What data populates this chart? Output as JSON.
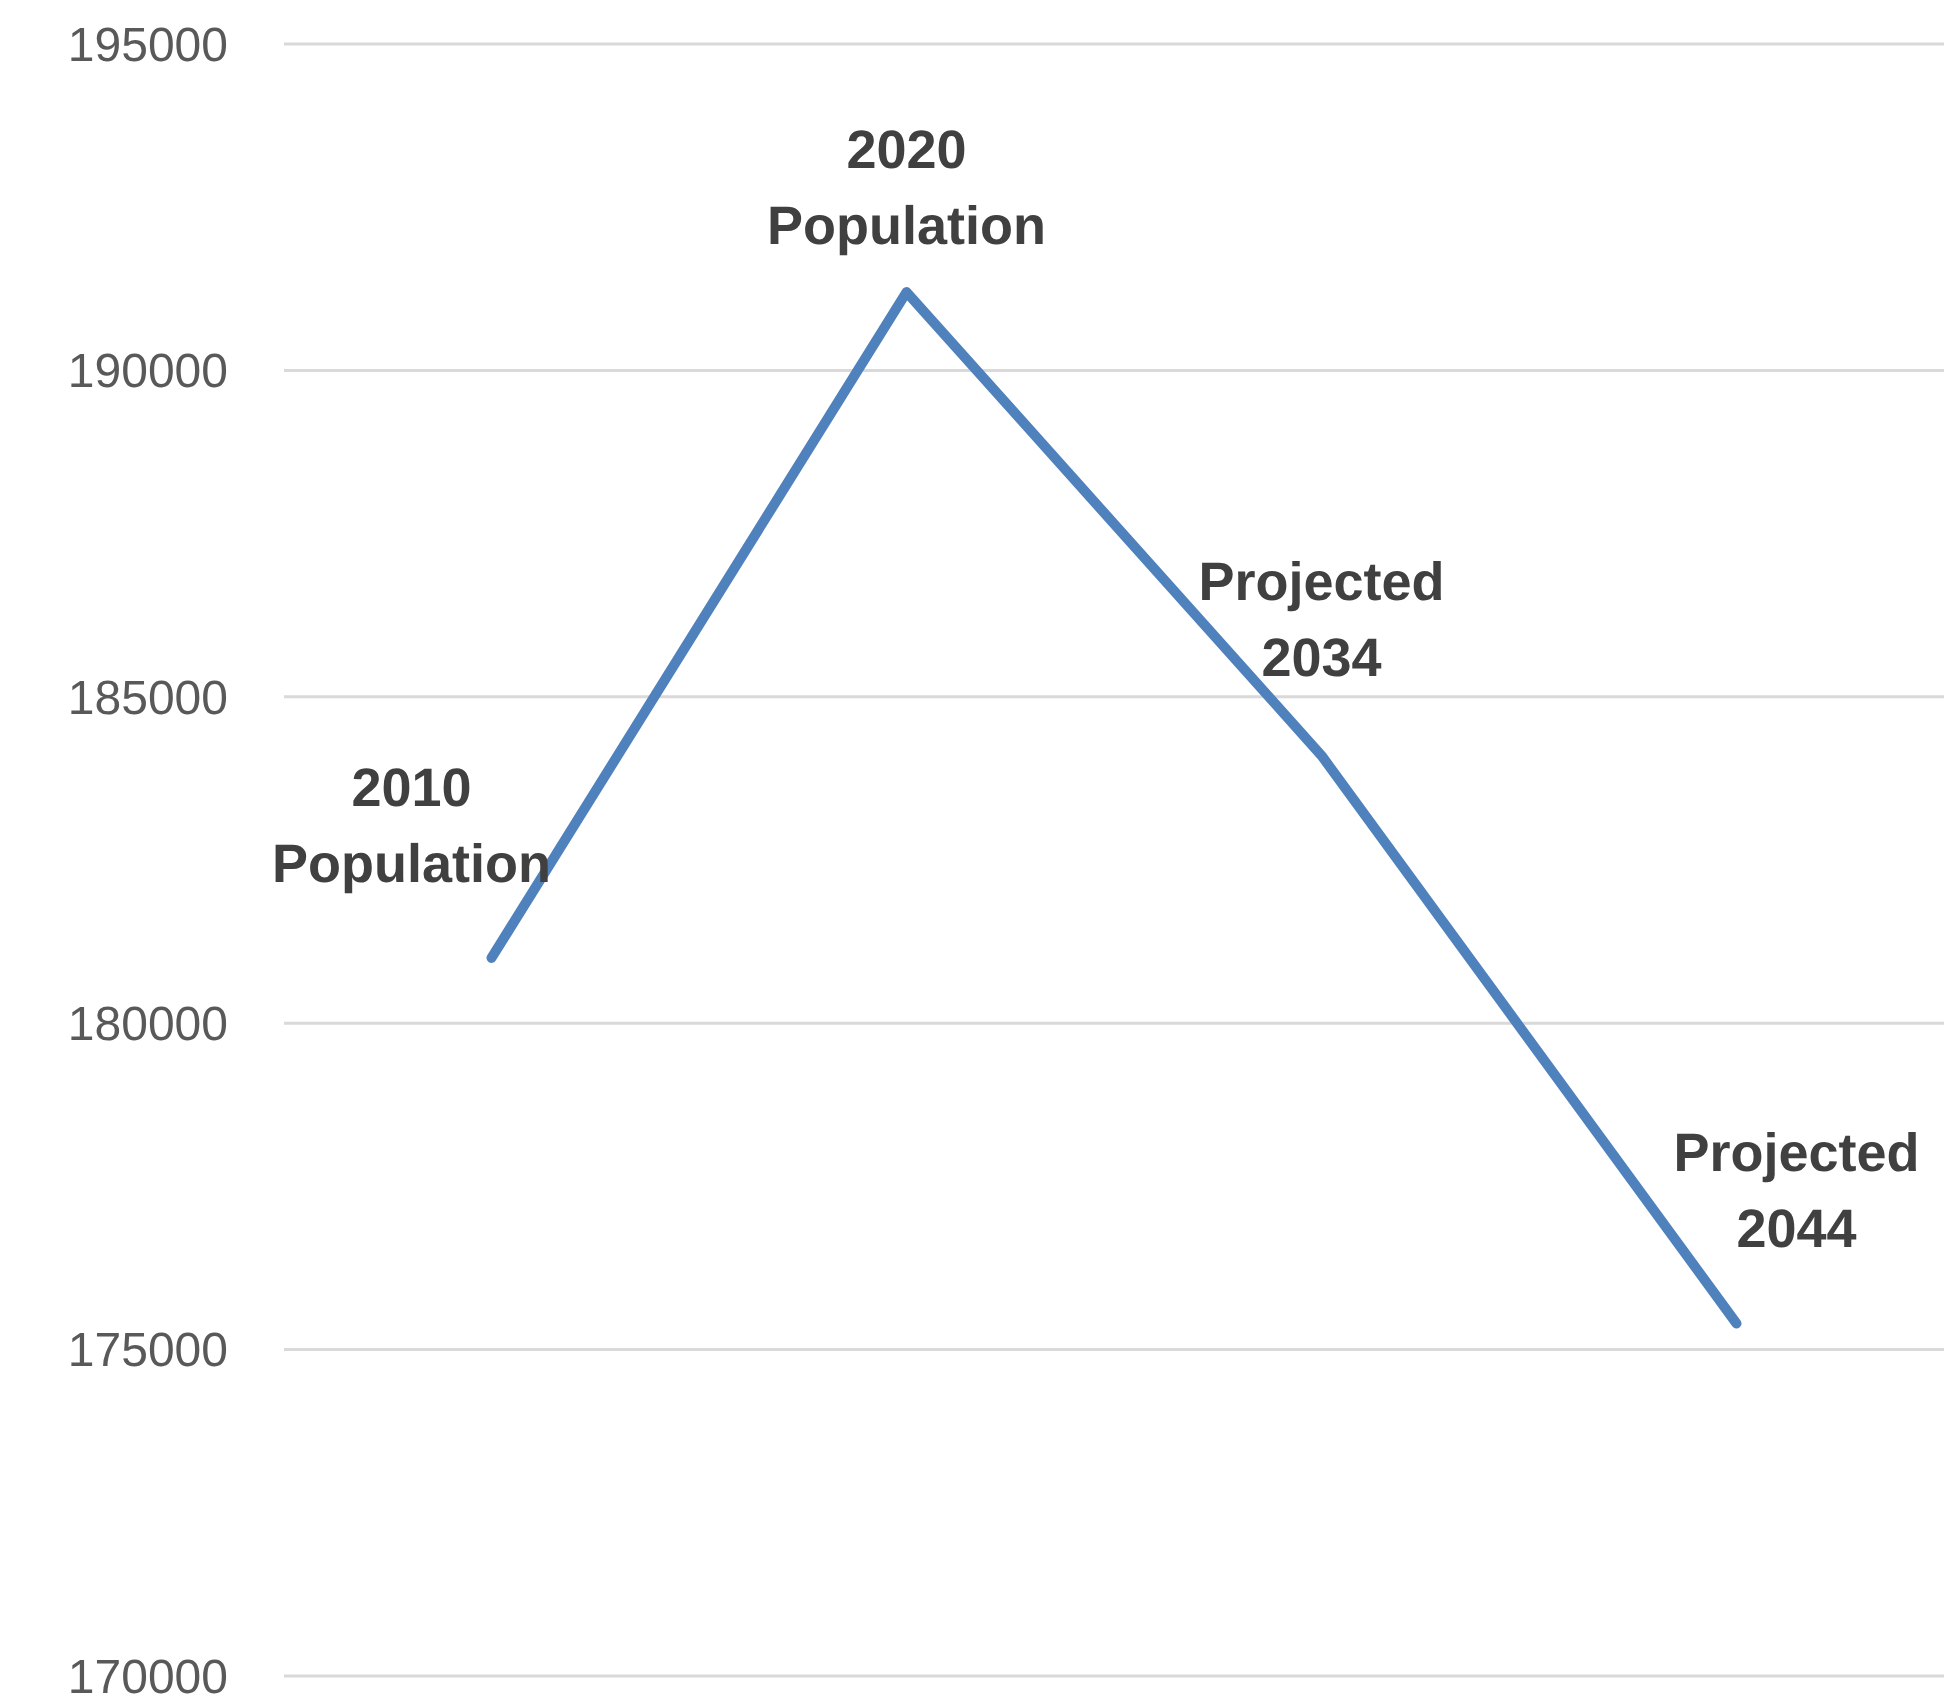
{
  "chart_data": {
    "type": "line",
    "categories": [
      "2010 Population",
      "2020 Population",
      "Projected 2034",
      "Projected 2044"
    ],
    "series": [
      {
        "color": "#4f81bd",
        "values": [
          181000,
          191200,
          184100,
          175400
        ]
      }
    ],
    "ylim": [
      170000,
      195000
    ],
    "yticks": [
      170000,
      175000,
      180000,
      185000,
      190000,
      195000
    ],
    "grid": "y",
    "marker": "none",
    "line_style": "solid",
    "tick_labels": "y"
  }
}
